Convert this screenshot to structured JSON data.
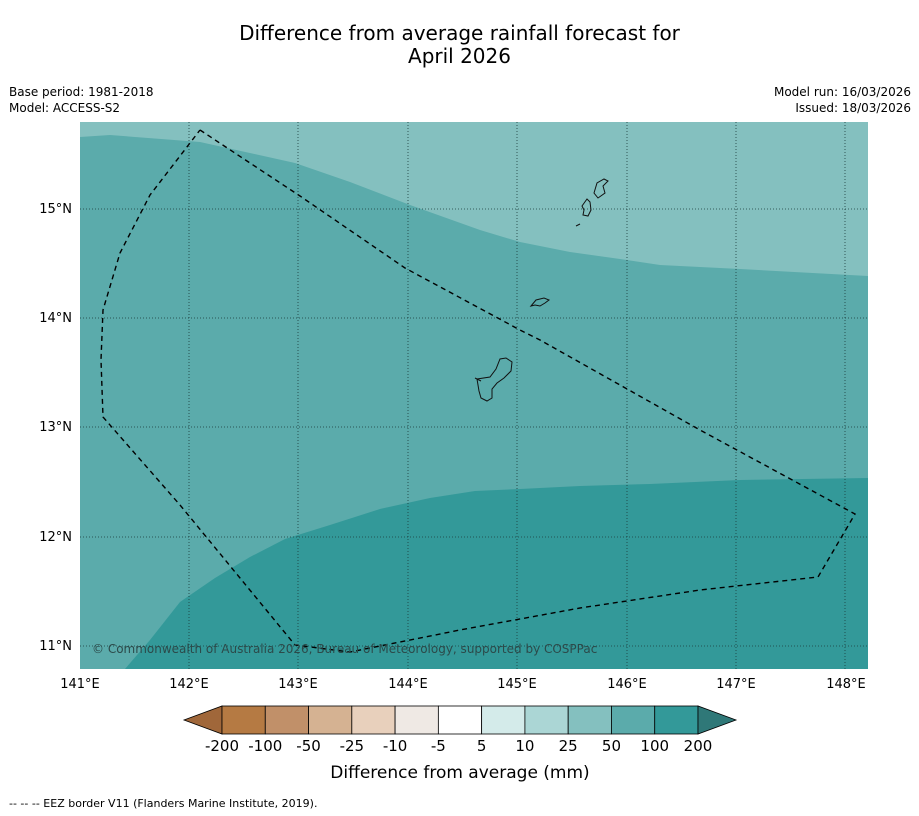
{
  "title_line1": "Difference from average rainfall forecast for",
  "title_line2": "April 2026",
  "base_period": "Base period: 1981-2018",
  "model": "Model: ACCESS-S2",
  "model_run": "Model run: 16/03/2026",
  "issued": "Issued: 18/03/2026",
  "copyright": "© Commonwealth of Australia 2026, Bureau of Meteorology, supported by COSPPac",
  "lon_labels": [
    "141°E",
    "142°E",
    "143°E",
    "144°E",
    "145°E",
    "146°E",
    "147°E",
    "148°E"
  ],
  "lat_labels": [
    "15°N",
    "14°N",
    "13°N",
    "12°N",
    "11°N"
  ],
  "legend": {
    "title": "Difference from average (mm)",
    "ticks": [
      "-200",
      "-100",
      "-50",
      "-25",
      "-10",
      "-5",
      "5",
      "10",
      "25",
      "50",
      "100",
      "200"
    ],
    "colors": [
      "#a0673a",
      "#b57a43",
      "#c19069",
      "#d5b292",
      "#e8d0bc",
      "#efe9e4",
      "#ffffff",
      "#d4ebea",
      "#abd6d5",
      "#84c0bf",
      "#5babab",
      "#339999",
      "#2f7878"
    ]
  },
  "field_colors": {
    "25_50": "#84c0bf",
    "50_100": "#5babab",
    "100_200": "#339999"
  },
  "footnote": "--  --  -- EEZ border V11 (Flanders Marine Institute, 2019)."
}
